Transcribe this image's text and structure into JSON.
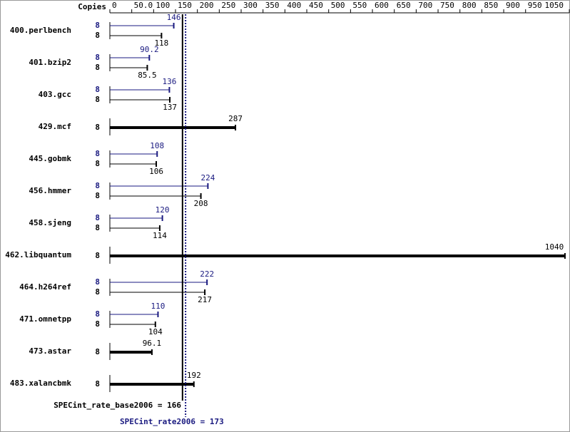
{
  "chart_data": {
    "type": "bar",
    "copies_label": "Copies",
    "categories": [
      "400.perlbench",
      "401.bzip2",
      "403.gcc",
      "429.mcf",
      "445.gobmk",
      "456.hmmer",
      "458.sjeng",
      "462.libquantum",
      "464.h264ref",
      "471.omnetpp",
      "473.astar",
      "483.xalancbmk"
    ],
    "series": [
      {
        "name": "SPECint_rate2006",
        "color": "#1a1a80",
        "overall": 173,
        "overall_label": "SPECint_rate2006 = 173",
        "copies": [
          8,
          8,
          8,
          null,
          8,
          8,
          8,
          null,
          8,
          8,
          null,
          null
        ],
        "values": [
          146,
          90.2,
          136,
          null,
          108,
          224,
          120,
          null,
          222,
          110,
          null,
          null
        ]
      },
      {
        "name": "SPECint_rate_base2006",
        "color": "#000000",
        "overall": 166,
        "overall_label": "SPECint_rate_base2006 = 166",
        "copies": [
          8,
          8,
          8,
          8,
          8,
          8,
          8,
          8,
          8,
          8,
          8,
          8
        ],
        "values": [
          118,
          85.5,
          137,
          287,
          106,
          208,
          114,
          1040,
          217,
          104,
          96.1,
          192
        ]
      }
    ],
    "xlim": [
      0,
      1050
    ],
    "xticks": [
      0,
      {
        "value": 50,
        "label": "50.0"
      },
      100,
      150,
      200,
      250,
      300,
      350,
      400,
      450,
      500,
      550,
      600,
      650,
      700,
      750,
      800,
      850,
      900,
      950,
      1050
    ]
  }
}
